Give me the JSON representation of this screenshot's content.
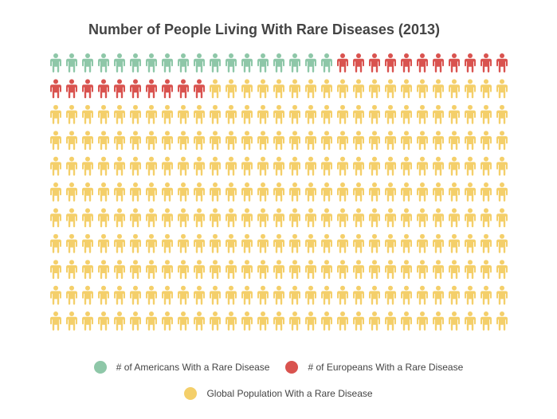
{
  "chart_data": {
    "type": "pictograph",
    "title": "Number of People Living With Rare Diseases (2013)",
    "grid": {
      "columns": 29,
      "rows": 11
    },
    "icon": "person-icon",
    "series": [
      {
        "name": "# of Americans With a Rare Disease",
        "icon_count": 18,
        "color": "#8ec7a8"
      },
      {
        "name": "# of Europeans With a Rare Disease",
        "icon_count": 21,
        "color": "#d9534f"
      },
      {
        "name": "Global Population With a Rare Disease",
        "icon_count": 280,
        "color": "#f4cf6a"
      }
    ],
    "legend": {
      "placement": "bottom"
    }
  }
}
